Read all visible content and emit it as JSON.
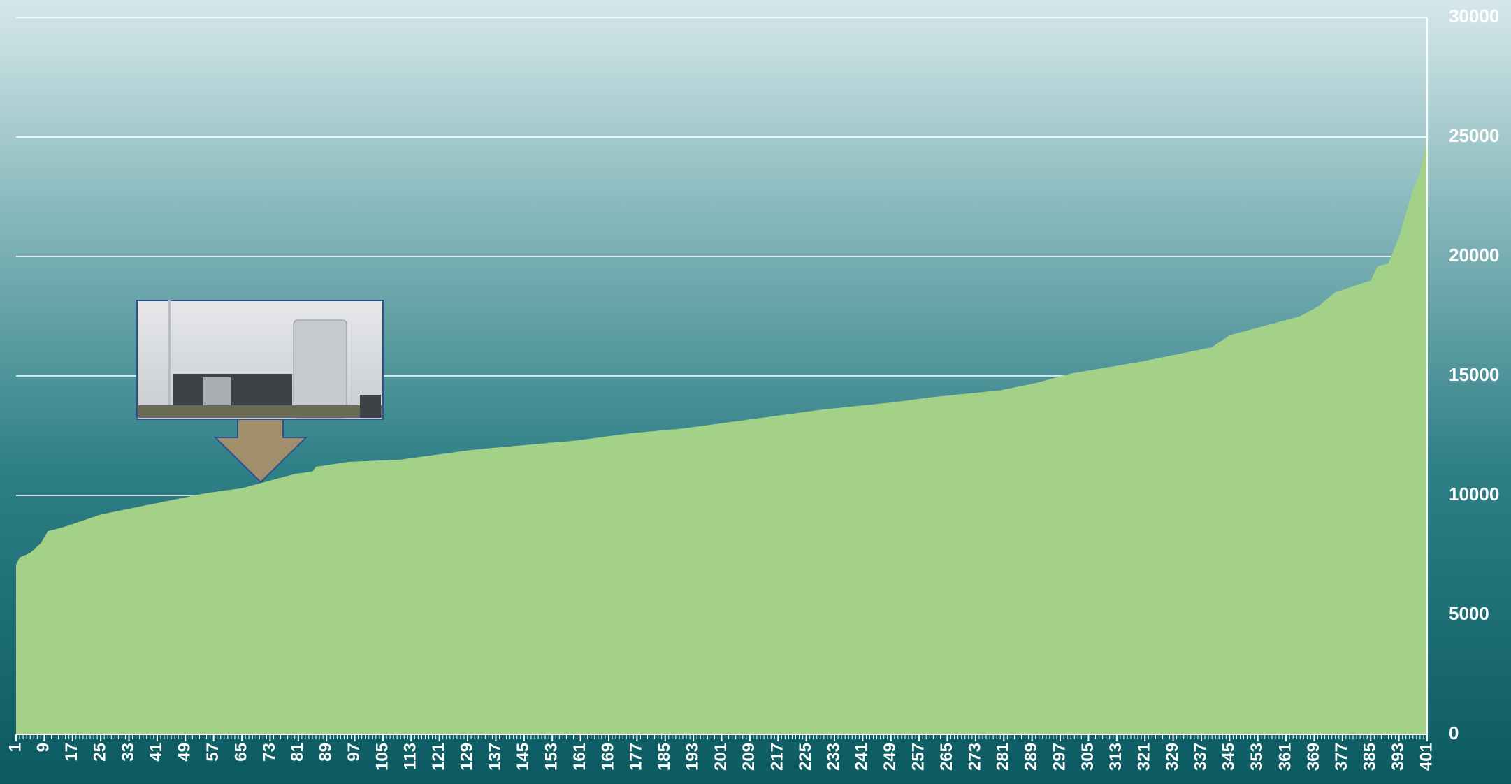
{
  "chart_data": {
    "type": "area",
    "color": "#a4d188",
    "grid": true,
    "xlim": [
      1,
      401
    ],
    "ylim": [
      0,
      30000
    ],
    "yticks": [
      0,
      5000,
      10000,
      15000,
      20000,
      25000,
      30000
    ],
    "gridlines": [
      10000,
      15000,
      20000,
      25000,
      30000
    ],
    "xticks": [
      1,
      9,
      17,
      25,
      33,
      41,
      49,
      57,
      65,
      73,
      81,
      89,
      97,
      105,
      113,
      121,
      129,
      137,
      145,
      153,
      161,
      169,
      177,
      185,
      193,
      201,
      209,
      217,
      225,
      233,
      241,
      249,
      257,
      265,
      273,
      281,
      289,
      297,
      305,
      313,
      321,
      329,
      337,
      345,
      353,
      361,
      369,
      377,
      385,
      393,
      401
    ],
    "x": [
      1,
      2,
      3,
      4,
      5,
      6,
      7,
      8,
      9,
      10,
      11,
      12,
      13,
      14,
      15,
      16,
      17,
      18,
      19,
      20,
      21,
      22,
      23,
      24,
      25,
      26,
      27,
      28,
      29,
      30,
      31,
      32,
      33,
      34,
      35,
      36,
      37,
      38,
      39,
      40,
      41,
      42,
      43,
      44,
      45,
      46,
      47,
      48,
      49,
      50,
      51,
      52,
      53,
      54,
      55,
      56,
      57,
      58,
      59,
      60,
      61,
      62,
      63,
      64,
      65,
      66,
      67,
      68,
      69,
      70,
      71,
      72,
      73,
      74,
      75,
      76,
      77,
      78,
      79,
      80,
      81,
      82,
      83,
      84,
      85,
      86,
      87,
      88,
      89,
      90,
      91,
      92,
      93,
      94,
      95,
      96,
      97,
      98,
      99,
      100,
      101,
      102,
      103,
      104,
      105,
      106,
      107,
      108,
      109,
      110,
      111,
      112,
      113,
      114,
      115,
      116,
      117,
      118,
      119,
      120,
      121,
      122,
      123,
      124,
      125,
      126,
      127,
      128,
      129,
      130,
      131,
      132,
      133,
      134,
      135,
      136,
      137,
      138,
      139,
      140,
      141,
      142,
      143,
      144,
      145,
      146,
      147,
      148,
      149,
      150,
      151,
      152,
      153,
      154,
      155,
      156,
      157,
      158,
      159,
      160,
      161,
      162,
      163,
      164,
      165,
      166,
      167,
      168,
      169,
      170,
      171,
      172,
      173,
      174,
      175,
      176,
      177,
      178,
      179,
      180,
      181,
      182,
      183,
      184,
      185,
      186,
      187,
      188,
      189,
      190,
      191,
      192,
      193,
      194,
      195,
      196,
      197,
      198,
      199,
      200,
      201,
      202,
      203,
      204,
      205,
      206,
      207,
      208,
      209,
      210,
      211,
      212,
      213,
      214,
      215,
      216,
      217,
      218,
      219,
      220,
      221,
      222,
      223,
      224,
      225,
      226,
      227,
      228,
      229,
      230,
      231,
      232,
      233,
      234,
      235,
      236,
      237,
      238,
      239,
      240,
      241,
      242,
      243,
      244,
      245,
      246,
      247,
      248,
      249,
      250,
      251,
      252,
      253,
      254,
      255,
      256,
      257,
      258,
      259,
      260,
      261,
      262,
      263,
      264,
      265,
      266,
      267,
      268,
      269,
      270,
      271,
      272,
      273,
      274,
      275,
      276,
      277,
      278,
      279,
      280,
      281,
      282,
      283,
      284,
      285,
      286,
      287,
      288,
      289,
      290,
      291,
      292,
      293,
      294,
      295,
      296,
      297,
      298,
      299,
      300,
      301,
      302,
      303,
      304,
      305,
      306,
      307,
      308,
      309,
      310,
      311,
      312,
      313,
      314,
      315,
      316,
      317,
      318,
      319,
      320,
      321,
      322,
      323,
      324,
      325,
      326,
      327,
      328,
      329,
      330,
      331,
      332,
      333,
      334,
      335,
      336,
      337,
      338,
      339,
      340,
      341,
      342,
      343,
      344,
      345,
      346,
      347,
      348,
      349,
      350,
      351,
      352,
      353,
      354,
      355,
      356,
      357,
      358,
      359,
      360,
      361,
      362,
      363,
      364,
      365,
      366,
      367,
      368,
      369,
      370,
      371,
      372,
      373,
      374,
      375,
      376,
      377,
      378,
      379,
      380,
      381,
      382,
      383,
      384,
      385,
      386,
      387,
      388,
      389,
      390,
      391,
      392,
      393,
      394,
      395,
      396,
      397,
      398,
      399,
      400,
      401
    ],
    "values": [
      7100,
      7400,
      7470,
      7530,
      7600,
      7730,
      7870,
      8000,
      8250,
      8500,
      8540,
      8580,
      8620,
      8660,
      8700,
      8750,
      8800,
      8850,
      8900,
      8950,
      9000,
      9050,
      9100,
      9150,
      9200,
      9230,
      9260,
      9290,
      9320,
      9350,
      9380,
      9410,
      9440,
      9470,
      9500,
      9530,
      9560,
      9590,
      9620,
      9650,
      9680,
      9710,
      9740,
      9770,
      9800,
      9830,
      9860,
      9890,
      9920,
      9950,
      9980,
      10010,
      10040,
      10070,
      10100,
      10120,
      10140,
      10160,
      10180,
      10200,
      10220,
      10240,
      10260,
      10280,
      10300,
      10340,
      10380,
      10420,
      10460,
      10500,
      10540,
      10580,
      10620,
      10660,
      10700,
      10740,
      10780,
      10820,
      10860,
      10900,
      10920,
      10940,
      10960,
      10980,
      11000,
      11200,
      11220,
      11240,
      11270,
      11290,
      11310,
      11330,
      11360,
      11380,
      11400,
      11410,
      11410,
      11420,
      11430,
      11430,
      11440,
      11450,
      11450,
      11460,
      11470,
      11470,
      11480,
      11490,
      11490,
      11500,
      11520,
      11540,
      11560,
      11580,
      11600,
      11620,
      11640,
      11660,
      11680,
      11700,
      11720,
      11740,
      11760,
      11780,
      11800,
      11820,
      11840,
      11860,
      11880,
      11900,
      11910,
      11930,
      11940,
      11960,
      11970,
      11990,
      12000,
      12010,
      12030,
      12040,
      12050,
      12070,
      12080,
      12090,
      12100,
      12120,
      12130,
      12140,
      12160,
      12170,
      12180,
      12200,
      12210,
      12220,
      12230,
      12250,
      12260,
      12270,
      12290,
      12300,
      12320,
      12340,
      12360,
      12380,
      12400,
      12420,
      12440,
      12460,
      12480,
      12500,
      12520,
      12540,
      12560,
      12580,
      12600,
      12610,
      12630,
      12640,
      12650,
      12670,
      12680,
      12690,
      12710,
      12720,
      12730,
      12750,
      12760,
      12770,
      12790,
      12800,
      12820,
      12840,
      12860,
      12880,
      12900,
      12920,
      12940,
      12960,
      12980,
      13000,
      13020,
      13040,
      13060,
      13080,
      13100,
      13120,
      13140,
      13160,
      13180,
      13200,
      13220,
      13240,
      13260,
      13280,
      13300,
      13320,
      13340,
      13360,
      13380,
      13400,
      13420,
      13440,
      13460,
      13480,
      13500,
      13520,
      13540,
      13560,
      13580,
      13600,
      13615,
      13630,
      13645,
      13660,
      13675,
      13690,
      13705,
      13720,
      13735,
      13750,
      13765,
      13780,
      13795,
      13810,
      13825,
      13840,
      13855,
      13870,
      13885,
      13900,
      13920,
      13940,
      13960,
      13980,
      14000,
      14020,
      14040,
      14060,
      14080,
      14100,
      14115,
      14130,
      14145,
      14160,
      14175,
      14190,
      14205,
      14220,
      14235,
      14250,
      14265,
      14280,
      14295,
      14310,
      14325,
      14340,
      14355,
      14370,
      14385,
      14400,
      14430,
      14460,
      14490,
      14520,
      14550,
      14580,
      14610,
      14640,
      14670,
      14700,
      14740,
      14780,
      14820,
      14860,
      14900,
      14940,
      14980,
      15020,
      15060,
      15100,
      15125,
      15150,
      15175,
      15200,
      15225,
      15250,
      15275,
      15300,
      15325,
      15350,
      15375,
      15400,
      15425,
      15450,
      15475,
      15500,
      15525,
      15550,
      15575,
      15600,
      15630,
      15660,
      15690,
      15720,
      15750,
      15780,
      15810,
      15840,
      15870,
      15900,
      15930,
      15960,
      15990,
      16020,
      16050,
      16080,
      16110,
      16140,
      16170,
      16200,
      16300,
      16400,
      16500,
      16600,
      16700,
      16740,
      16780,
      16820,
      16860,
      16900,
      16940,
      16980,
      17020,
      17060,
      17100,
      17140,
      17180,
      17220,
      17260,
      17300,
      17340,
      17380,
      17420,
      17460,
      17500,
      17580,
      17660,
      17740,
      17820,
      17900,
      18020,
      18140,
      18260,
      18380,
      18500,
      18550,
      18600,
      18650,
      18700,
      18750,
      18800,
      18850,
      18900,
      18950,
      19000,
      19300,
      19600,
      19630,
      19670,
      19700,
      20070,
      20430,
      20800,
      21300,
      21800,
      22300,
      22800,
      23150,
      23500,
      24250,
      25000
    ]
  }
}
